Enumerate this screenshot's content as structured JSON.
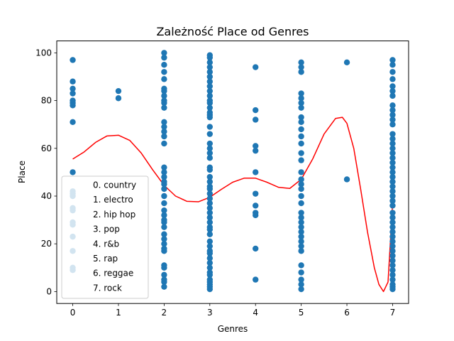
{
  "chart_data": {
    "type": "scatter",
    "title": "Zależność Place od Genres",
    "xlabel": "Genres",
    "ylabel": "Place",
    "xlim": [
      -0.35,
      7.35
    ],
    "ylim": [
      -5,
      105
    ],
    "x_ticks": [
      0,
      1,
      2,
      3,
      4,
      5,
      6,
      7
    ],
    "y_ticks": [
      0,
      20,
      40,
      60,
      80,
      100
    ],
    "grid": false,
    "legend_position": "lower-left",
    "legend_entries": [
      "0. country",
      "1. electro",
      "2. hip hop",
      "3. pop",
      "4. r&b",
      "5. rap",
      "6. reggae",
      "7. rock"
    ],
    "point_color": "#1f77b4",
    "curve_color": "#ff0000",
    "points": [
      {
        "x": 0,
        "y": [
          97,
          88,
          85,
          83,
          80,
          79,
          78,
          71,
          50,
          42,
          41,
          40,
          35,
          34,
          29,
          28,
          23,
          17,
          10,
          9
        ]
      },
      {
        "x": 1,
        "y": [
          84,
          81
        ]
      },
      {
        "x": 2,
        "y": [
          100,
          98,
          95,
          92,
          89,
          85,
          84,
          82,
          80,
          79,
          77,
          71,
          69,
          67,
          65,
          62,
          52,
          50,
          48,
          46,
          45,
          43,
          40,
          37,
          34,
          32,
          30,
          29,
          27,
          24,
          22,
          20,
          18,
          17,
          11,
          10,
          7,
          5,
          4,
          2
        ]
      },
      {
        "x": 3,
        "y": [
          99,
          98,
          96,
          94,
          92,
          90,
          88,
          86,
          84,
          82,
          80,
          79,
          77,
          75,
          74,
          73,
          69,
          66,
          62,
          60,
          58,
          56,
          52,
          51,
          48,
          46,
          44,
          43,
          41,
          39,
          37,
          35,
          33,
          31,
          29,
          27,
          26,
          24,
          21,
          19,
          17,
          16,
          14,
          12,
          10,
          8,
          7,
          5,
          4,
          3,
          2,
          1
        ]
      },
      {
        "x": 4,
        "y": [
          94,
          76,
          72,
          61,
          59,
          50,
          41,
          36,
          33,
          32,
          18,
          5
        ]
      },
      {
        "x": 5,
        "y": [
          96,
          94,
          92,
          83,
          81,
          79,
          77,
          73,
          71,
          68,
          65,
          62,
          58,
          55,
          50,
          47,
          45,
          43,
          40,
          37,
          33,
          31,
          29,
          27,
          25,
          23,
          21,
          19,
          17,
          11,
          8,
          5,
          3,
          1
        ]
      },
      {
        "x": 6,
        "y": [
          96,
          47
        ]
      },
      {
        "x": 7,
        "y": [
          97,
          95,
          92,
          89,
          86,
          84,
          82,
          78,
          76,
          74,
          72,
          70,
          66,
          64,
          62,
          60,
          58,
          56,
          54,
          52,
          50,
          48,
          46,
          44,
          42,
          40,
          38,
          36,
          33,
          31,
          29,
          27,
          25,
          23,
          21,
          19,
          17,
          15,
          13,
          11,
          9,
          7,
          5,
          3,
          2,
          1
        ]
      }
    ],
    "curve": {
      "x": [
        0,
        0.25,
        0.5,
        0.75,
        1,
        1.25,
        1.5,
        1.75,
        2,
        2.25,
        2.5,
        2.75,
        3,
        3.25,
        3.5,
        3.75,
        4,
        4.25,
        4.5,
        4.75,
        5,
        5.25,
        5.5,
        5.75,
        5.9,
        6,
        6.15,
        6.3,
        6.45,
        6.6,
        6.7,
        6.8,
        6.9,
        7
      ],
      "y": [
        55.5,
        58.5,
        62.5,
        65.2,
        65.5,
        63.3,
        58.0,
        51.0,
        44.5,
        40.0,
        37.8,
        37.6,
        39.5,
        42.8,
        45.8,
        47.5,
        47.5,
        45.8,
        43.7,
        43.2,
        47.0,
        55.5,
        66.0,
        72.5,
        73.0,
        70.5,
        60.0,
        43.0,
        25.0,
        10.0,
        3.0,
        0.0,
        4.0,
        37.0
      ]
    }
  }
}
